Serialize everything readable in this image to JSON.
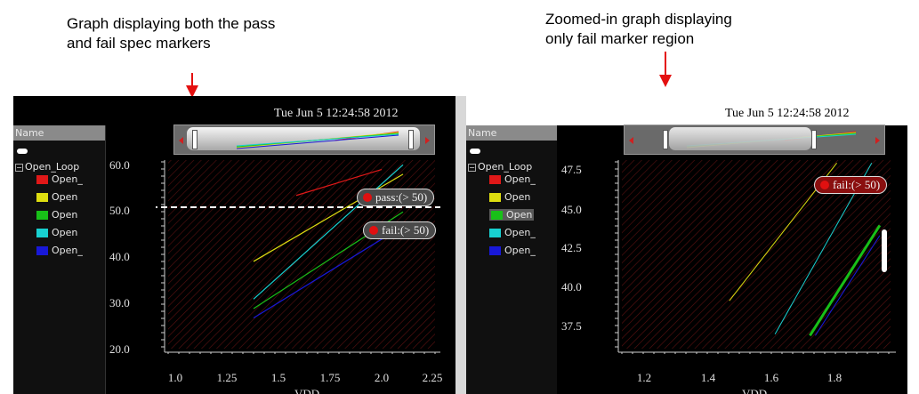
{
  "callouts": {
    "left": {
      "line1": "Graph displaying both the pass",
      "line2": "and fail spec markers"
    },
    "right": {
      "line1": "Zoomed-in graph displaying",
      "line2": "only fail marker region"
    }
  },
  "colors": {
    "arrow": "#e41010",
    "background": "#000000",
    "fail_marker": "#8a0f0f",
    "pass_marker": "#4a4a4a"
  },
  "left_panel": {
    "timestamp": "Tue Jun 5 12:24:58 2012",
    "name_header": "Name",
    "tree_root": "Open_Loop",
    "items": [
      {
        "label": "Open_",
        "color": "#e01818"
      },
      {
        "label": "Open",
        "color": "#dddd10"
      },
      {
        "label": "Open",
        "color": "#18c018"
      },
      {
        "label": "Open",
        "color": "#18d0d0"
      },
      {
        "label": "Open_",
        "color": "#1818d8"
      }
    ],
    "yticks": [
      "60.0",
      "50.0",
      "40.0",
      "30.0",
      "20.0"
    ],
    "xticks": [
      "1.0",
      "1.25",
      "1.5",
      "1.75",
      "2.0",
      "2.25"
    ],
    "xlabel": "VDD",
    "pass_marker": "pass:(> 50)",
    "fail_marker": "fail:(> 50)"
  },
  "right_panel": {
    "timestamp": "Tue Jun 5 12:24:58 2012",
    "name_header": "Name",
    "tree_root": "Open_Loop",
    "items": [
      {
        "label": "Open_",
        "color": "#e01818"
      },
      {
        "label": "Open",
        "color": "#dddd10"
      },
      {
        "label": "Open",
        "color": "#18c018"
      },
      {
        "label": "Open_",
        "color": "#18d0d0"
      },
      {
        "label": "Open_",
        "color": "#1818d8"
      }
    ],
    "yticks": [
      "47.5",
      "45.0",
      "42.5",
      "40.0",
      "37.5"
    ],
    "xticks": [
      "1.2",
      "1.4",
      "1.6",
      "1.8"
    ],
    "xlabel": "VDD",
    "fail_marker": "fail:(> 50)"
  },
  "chart_data": [
    {
      "type": "line",
      "xlabel": "VDD",
      "xlim": [
        1.0,
        2.25
      ],
      "ylim": [
        20,
        60
      ],
      "spec_line": 50,
      "series": [
        {
          "color": "#e01818",
          "x": [
            1.6,
            2.0
          ],
          "y": [
            52.5,
            58.0
          ]
        },
        {
          "color": "#dddd10",
          "x": [
            1.4,
            2.1
          ],
          "y": [
            38.5,
            57.0
          ]
        },
        {
          "color": "#18d0d0",
          "x": [
            1.4,
            2.1
          ],
          "y": [
            30.5,
            59.0
          ]
        },
        {
          "color": "#18c018",
          "x": [
            1.4,
            2.1
          ],
          "y": [
            28.5,
            49.0
          ]
        },
        {
          "color": "#1818d8",
          "x": [
            1.4,
            2.1
          ],
          "y": [
            26.5,
            46.0
          ]
        }
      ]
    },
    {
      "type": "line",
      "xlabel": "VDD",
      "xlim": [
        1.0,
        2.0
      ],
      "ylim": [
        35.0,
        48.0
      ],
      "series": [
        {
          "color": "#dddd10",
          "x": [
            1.4,
            1.8
          ],
          "y": [
            38.3,
            47.8
          ]
        },
        {
          "color": "#18d0d0",
          "x": [
            1.57,
            1.93
          ],
          "y": [
            36.0,
            47.8
          ]
        },
        {
          "color": "#18c018",
          "x": [
            1.7,
            1.96
          ],
          "y": [
            35.9,
            43.5
          ]
        },
        {
          "color": "#1818d8",
          "x": [
            1.72,
            1.96
          ],
          "y": [
            35.9,
            42.8
          ]
        }
      ]
    }
  ]
}
